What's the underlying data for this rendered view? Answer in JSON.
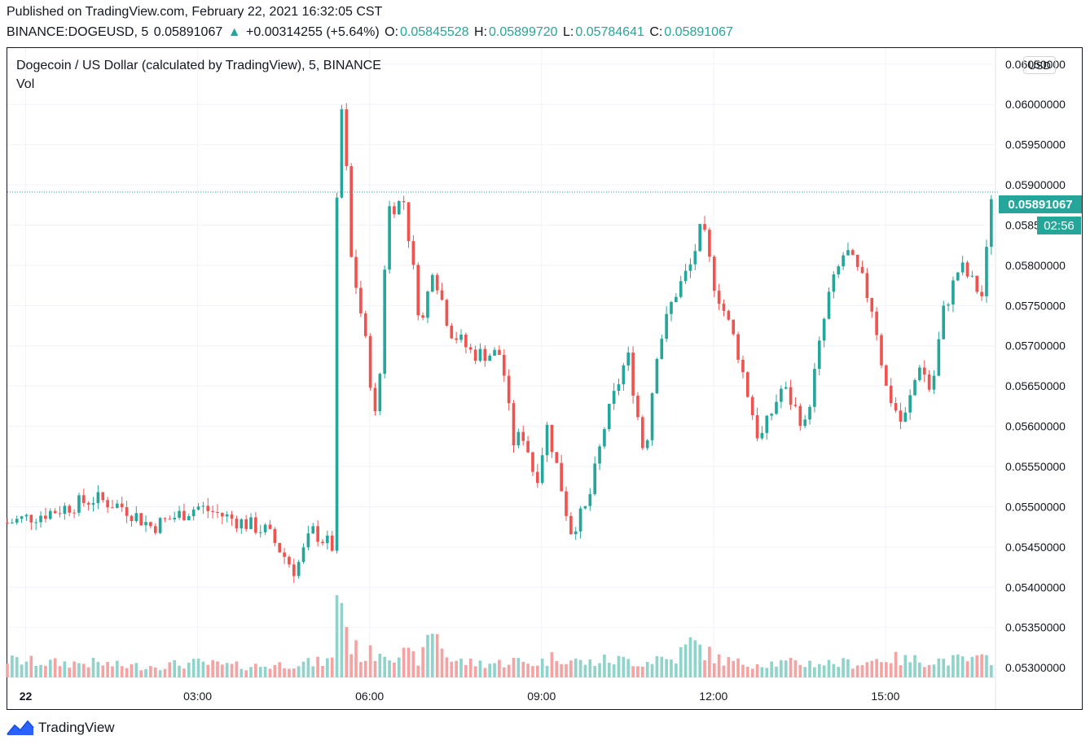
{
  "header": {
    "published": "Published on TradingView.com, February 22, 2021 16:32:05 CST",
    "symbol": "BINANCE:DOGEUSD, 5",
    "last": "0.05891067",
    "change": "+0.00314255 (+5.64%)",
    "o_label": "O:",
    "o": "0.05845528",
    "h_label": "H:",
    "h": "0.05899720",
    "l_label": "L:",
    "l": "0.05784641",
    "c_label": "C:",
    "c": "0.05891067"
  },
  "legend": {
    "title": "Dogecoin / US Dollar (calculated by TradingView), 5, BINANCE",
    "vol": "Vol"
  },
  "currency_button": "USD",
  "last_price_label": "0.05891067",
  "countdown": "02:56",
  "brand": "TradingView",
  "colors": {
    "up": "#26a69a",
    "down": "#ef5350",
    "up_vol": "#8fd3cb",
    "down_vol": "#f5a3a2"
  },
  "chart_data": {
    "type": "candlestick",
    "symbol": "BINANCE:DOGEUSD",
    "interval": "5",
    "y_ticks": [
      "0.06050000",
      "0.06000000",
      "0.05950000",
      "0.05900000",
      "0.05850000",
      "0.05800000",
      "0.05750000",
      "0.05700000",
      "0.05650000",
      "0.05600000",
      "0.05550000",
      "0.05500000",
      "0.05450000",
      "0.05400000",
      "0.05350000",
      "0.05300000"
    ],
    "x_ticks": [
      {
        "label": "22",
        "hour": 0
      },
      {
        "label": "03:00",
        "hour": 3
      },
      {
        "label": "06:00",
        "hour": 6
      },
      {
        "label": "09:00",
        "hour": 9
      },
      {
        "label": "12:00",
        "hour": 12
      },
      {
        "label": "15:00",
        "hour": 15
      }
    ],
    "ylim": [
      0.05288,
      0.0607
    ],
    "xlim_hours": [
      -0.32,
      16.92
    ],
    "last_price": 0.05891067,
    "volume_scale_max": 40,
    "anchors": [
      {
        "h": -0.32,
        "p": 0.0548,
        "v": 6
      },
      {
        "h": 0.5,
        "p": 0.05495,
        "v": 5
      },
      {
        "h": 1.2,
        "p": 0.0551,
        "v": 5
      },
      {
        "h": 1.7,
        "p": 0.055,
        "v": 4
      },
      {
        "h": 2.2,
        "p": 0.05475,
        "v": 4
      },
      {
        "h": 3.0,
        "p": 0.055,
        "v": 5
      },
      {
        "h": 3.6,
        "p": 0.05485,
        "v": 4
      },
      {
        "h": 4.2,
        "p": 0.0547,
        "v": 4
      },
      {
        "h": 4.7,
        "p": 0.0542,
        "v": 5
      },
      {
        "h": 5.0,
        "p": 0.0547,
        "v": 5
      },
      {
        "h": 5.35,
        "p": 0.0545,
        "v": 6
      },
      {
        "h": 5.45,
        "p": 0.0598,
        "v": 40
      },
      {
        "h": 5.55,
        "p": 0.06,
        "v": 22
      },
      {
        "h": 5.65,
        "p": 0.0582,
        "v": 12
      },
      {
        "h": 5.9,
        "p": 0.0572,
        "v": 7
      },
      {
        "h": 6.1,
        "p": 0.0561,
        "v": 9
      },
      {
        "h": 6.2,
        "p": 0.0568,
        "v": 10
      },
      {
        "h": 6.3,
        "p": 0.0587,
        "v": 9
      },
      {
        "h": 6.6,
        "p": 0.0588,
        "v": 8
      },
      {
        "h": 6.9,
        "p": 0.0572,
        "v": 6
      },
      {
        "h": 7.1,
        "p": 0.058,
        "v": 18
      },
      {
        "h": 7.4,
        "p": 0.0572,
        "v": 6
      },
      {
        "h": 7.8,
        "p": 0.0569,
        "v": 5
      },
      {
        "h": 8.3,
        "p": 0.0569,
        "v": 5
      },
      {
        "h": 8.5,
        "p": 0.0558,
        "v": 6
      },
      {
        "h": 8.7,
        "p": 0.0559,
        "v": 5
      },
      {
        "h": 8.9,
        "p": 0.0553,
        "v": 5
      },
      {
        "h": 9.1,
        "p": 0.056,
        "v": 6
      },
      {
        "h": 9.3,
        "p": 0.0554,
        "v": 8
      },
      {
        "h": 9.5,
        "p": 0.0547,
        "v": 6
      },
      {
        "h": 9.8,
        "p": 0.055,
        "v": 5
      },
      {
        "h": 10.1,
        "p": 0.056,
        "v": 6
      },
      {
        "h": 10.5,
        "p": 0.0569,
        "v": 6
      },
      {
        "h": 10.8,
        "p": 0.0556,
        "v": 5
      },
      {
        "h": 11.0,
        "p": 0.0569,
        "v": 7
      },
      {
        "h": 11.3,
        "p": 0.0576,
        "v": 6
      },
      {
        "h": 11.6,
        "p": 0.058,
        "v": 12
      },
      {
        "h": 11.8,
        "p": 0.0585,
        "v": 10
      },
      {
        "h": 12.0,
        "p": 0.0578,
        "v": 7
      },
      {
        "h": 12.4,
        "p": 0.057,
        "v": 5
      },
      {
        "h": 12.8,
        "p": 0.0558,
        "v": 5
      },
      {
        "h": 13.2,
        "p": 0.0565,
        "v": 5
      },
      {
        "h": 13.6,
        "p": 0.056,
        "v": 5
      },
      {
        "h": 14.0,
        "p": 0.0576,
        "v": 5
      },
      {
        "h": 14.3,
        "p": 0.0582,
        "v": 5
      },
      {
        "h": 14.6,
        "p": 0.0578,
        "v": 5
      },
      {
        "h": 14.8,
        "p": 0.0574,
        "v": 6
      },
      {
        "h": 15.0,
        "p": 0.0565,
        "v": 7
      },
      {
        "h": 15.3,
        "p": 0.056,
        "v": 6
      },
      {
        "h": 15.6,
        "p": 0.0568,
        "v": 6
      },
      {
        "h": 15.8,
        "p": 0.0564,
        "v": 6
      },
      {
        "h": 16.0,
        "p": 0.0574,
        "v": 6
      },
      {
        "h": 16.3,
        "p": 0.058,
        "v": 6
      },
      {
        "h": 16.5,
        "p": 0.0578,
        "v": 6
      },
      {
        "h": 16.7,
        "p": 0.0576,
        "v": 6
      },
      {
        "h": 16.85,
        "p": 0.05891,
        "v": 7
      }
    ]
  }
}
